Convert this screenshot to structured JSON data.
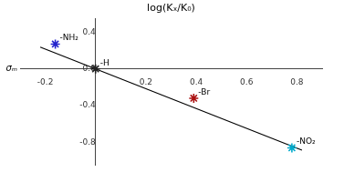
{
  "chart_data": {
    "type": "scatter",
    "title": "log(Kₓ/K₀)",
    "x_label": "σₘ",
    "marker": "star",
    "series": [
      {
        "name": "-NH₂",
        "color": "#2222cc",
        "x": [
          -0.16
        ],
        "values": [
          0.27
        ]
      },
      {
        "name": "-H",
        "color": "#222222",
        "x": [
          0.0
        ],
        "values": [
          0.0
        ]
      },
      {
        "name": "-Br",
        "color": "#aa1111",
        "x": [
          0.39
        ],
        "values": [
          -0.32
        ]
      },
      {
        "name": "-NO₂",
        "color": "#00aacc",
        "x": [
          0.78
        ],
        "values": [
          -0.86
        ]
      },
      {
        "type": "line",
        "color": "#000000",
        "x": [
          -0.22,
          0.82
        ],
        "values": [
          0.2376,
          -0.8856
        ]
      }
    ],
    "xlim": [
      -0.3,
      0.9
    ],
    "ylim": [
      -1.05,
      0.55
    ],
    "xticks": [
      -0.2,
      0.2,
      0.4,
      0.6,
      0.8
    ],
    "yticks": [
      -0.8,
      -0.4,
      {
        "value": 0,
        "label": "0.0"
      },
      0.4
    ],
    "grid": false
  }
}
